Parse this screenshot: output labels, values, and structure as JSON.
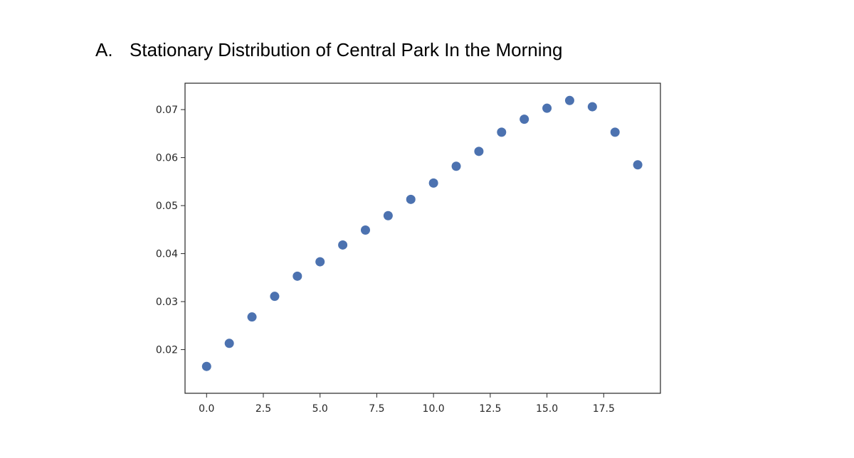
{
  "heading": {
    "marker": "A.",
    "text": "Stationary Distribution of Central Park In the Morning"
  },
  "chart_data": {
    "type": "scatter",
    "title": "",
    "xlabel": "",
    "ylabel": "",
    "x": [
      0,
      1,
      2,
      3,
      4,
      5,
      6,
      7,
      8,
      9,
      10,
      11,
      12,
      13,
      14,
      15,
      16,
      17,
      18,
      19
    ],
    "y": [
      0.0165,
      0.0213,
      0.0268,
      0.0311,
      0.0353,
      0.0383,
      0.0418,
      0.0449,
      0.0479,
      0.0513,
      0.0547,
      0.0582,
      0.0613,
      0.0653,
      0.068,
      0.0703,
      0.0719,
      0.0706,
      0.0653,
      0.0585
    ],
    "xlim": [
      -0.95,
      20.0
    ],
    "ylim": [
      0.0109,
      0.0755
    ],
    "xticks": [
      0.0,
      2.5,
      5.0,
      7.5,
      10.0,
      12.5,
      15.0,
      17.5
    ],
    "xtick_labels": [
      "0.0",
      "2.5",
      "5.0",
      "7.5",
      "10.0",
      "12.5",
      "15.0",
      "17.5"
    ],
    "yticks": [
      0.02,
      0.03,
      0.04,
      0.05,
      0.06,
      0.07
    ],
    "ytick_labels": [
      "0.02",
      "0.03",
      "0.04",
      "0.05",
      "0.06",
      "0.07"
    ],
    "grid": false,
    "colors": {
      "marker": "#4c72b0",
      "axes": "#262626"
    }
  }
}
